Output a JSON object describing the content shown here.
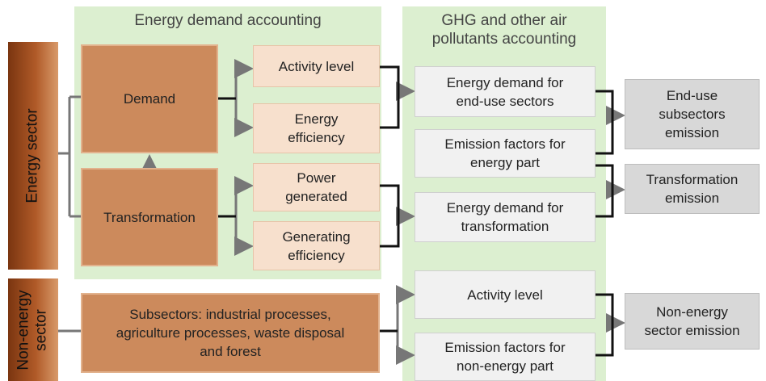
{
  "panels": [
    {
      "title": [
        "Energy demand accounting"
      ]
    },
    {
      "title": [
        "GHG and other air",
        "pollutants accounting"
      ]
    }
  ],
  "sectors": [
    {
      "label": [
        "Energy sector"
      ]
    },
    {
      "label": [
        "Non-energy",
        "sector"
      ]
    }
  ],
  "nodes": [
    {
      "label": [
        "Demand"
      ]
    },
    {
      "label": [
        "Transformation"
      ]
    },
    {
      "label": [
        "Activity level"
      ]
    },
    {
      "label": [
        "Energy",
        "efficiency"
      ]
    },
    {
      "label": [
        "Power",
        "generated"
      ]
    },
    {
      "label": [
        "Generating",
        "efficiency"
      ]
    },
    {
      "label": [
        "Subsectors: industrial processes,",
        "agriculture processes, waste disposal",
        "and forest"
      ]
    },
    {
      "label": [
        "Energy demand for",
        "end-use sectors"
      ]
    },
    {
      "label": [
        "Emission factors for",
        "energy part"
      ]
    },
    {
      "label": [
        "Energy demand for",
        "transformation"
      ]
    },
    {
      "label": [
        "Activity level"
      ]
    },
    {
      "label": [
        "Emission factors for",
        "non-energy part"
      ]
    },
    {
      "label": [
        "End-use",
        "subsectors",
        "emission"
      ]
    },
    {
      "label": [
        "Transformation",
        "emission"
      ]
    },
    {
      "label": [
        "Non-energy",
        "sector emission"
      ]
    }
  ]
}
